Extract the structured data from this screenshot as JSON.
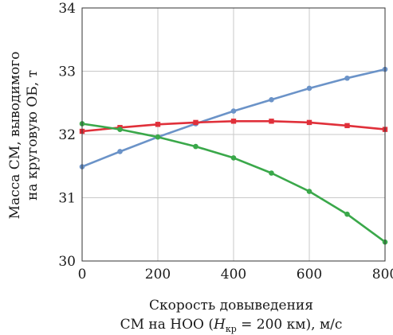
{
  "chart_data": {
    "type": "line",
    "ylabel_line1": "Масса СМ, выводимого",
    "ylabel_line2": "на круговую ОБ, т",
    "xlabel_line1": "Скорость довыведения",
    "xlabel_line2_pre": "СМ на НОО (",
    "xlabel_line2_var": "H",
    "xlabel_line2_sub": "кр",
    "xlabel_line2_post": " = 200 км), м/с",
    "xlim": [
      0,
      800
    ],
    "ylim": [
      30,
      34
    ],
    "x_ticks": [
      "0",
      "200",
      "400",
      "600",
      "800"
    ],
    "y_ticks": [
      "30",
      "31",
      "32",
      "33",
      "34"
    ],
    "grid": true,
    "x": [
      0,
      100,
      200,
      300,
      400,
      500,
      600,
      700,
      800
    ],
    "series": [
      {
        "color": "#6b93c8",
        "marker": "circle",
        "values": [
          31.49,
          31.73,
          31.96,
          32.17,
          32.37,
          32.55,
          32.73,
          32.89,
          33.03
        ]
      },
      {
        "color": "#e0303a",
        "marker": "square",
        "values": [
          32.05,
          32.11,
          32.16,
          32.19,
          32.21,
          32.21,
          32.19,
          32.14,
          32.08
        ]
      },
      {
        "color": "#3aa84a",
        "marker": "circle",
        "values": [
          32.17,
          32.08,
          31.96,
          31.81,
          31.63,
          31.39,
          31.1,
          30.74,
          30.3
        ]
      }
    ]
  }
}
